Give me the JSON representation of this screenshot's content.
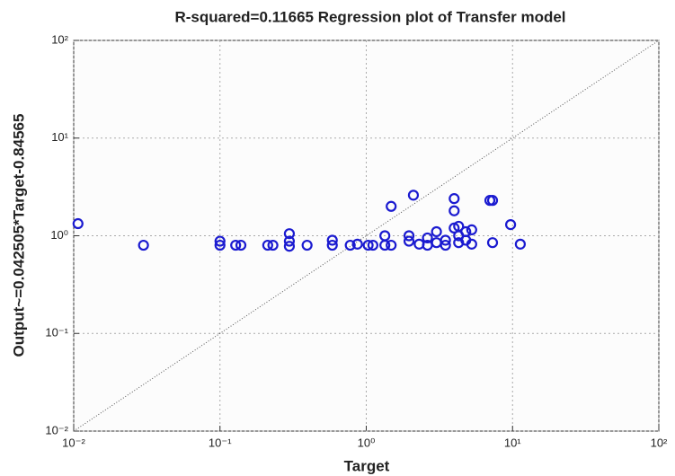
{
  "chart_data": {
    "type": "scatter",
    "title": "R-squared=0.11665   Regression plot of Transfer model",
    "xlabel": "Target",
    "ylabel": "Output~=0.042505*Target-0.84565",
    "xscale": "log",
    "yscale": "log",
    "grid": true,
    "color": "#1a1ad0",
    "xlim": [
      0.01,
      100
    ],
    "ylim": [
      0.01,
      100
    ],
    "xticks": [
      {
        "value": 0.01,
        "label": "10⁻²"
      },
      {
        "value": 0.1,
        "label": "10⁻¹"
      },
      {
        "value": 1,
        "label": "10⁰"
      },
      {
        "value": 10,
        "label": "10¹"
      },
      {
        "value": 100,
        "label": "10²"
      }
    ],
    "yticks": [
      {
        "value": 0.01,
        "label": "10⁻²"
      },
      {
        "value": 0.1,
        "label": "10⁻¹"
      },
      {
        "value": 1,
        "label": "10⁰"
      },
      {
        "value": 10,
        "label": "10¹"
      },
      {
        "value": 100,
        "label": "10²"
      }
    ],
    "x": [
      0.0107,
      0.03,
      0.1,
      0.1,
      0.128,
      0.139,
      0.212,
      0.23,
      0.298,
      0.298,
      0.298,
      0.394,
      0.586,
      0.586,
      0.777,
      0.87,
      1.03,
      1.11,
      1.34,
      1.34,
      1.48,
      1.48,
      1.96,
      1.96,
      2.1,
      2.3,
      2.62,
      2.62,
      3.02,
      3.02,
      3.48,
      3.48,
      3.99,
      3.99,
      3.99,
      4.28,
      4.28,
      4.28,
      4.79,
      4.79,
      5.26,
      5.26,
      7.0,
      7.3,
      7.3,
      9.7,
      11.3
    ],
    "values": [
      1.33,
      0.8,
      0.88,
      0.8,
      0.8,
      0.8,
      0.8,
      0.8,
      1.05,
      0.88,
      0.78,
      0.8,
      0.9,
      0.8,
      0.8,
      0.82,
      0.8,
      0.8,
      1.0,
      0.8,
      2.0,
      0.8,
      1.0,
      0.88,
      2.6,
      0.82,
      0.8,
      0.95,
      0.85,
      1.1,
      0.9,
      0.8,
      2.4,
      1.8,
      1.2,
      1.0,
      0.85,
      1.25,
      0.9,
      1.1,
      1.15,
      0.82,
      2.3,
      2.3,
      0.85,
      1.3,
      0.82
    ]
  }
}
